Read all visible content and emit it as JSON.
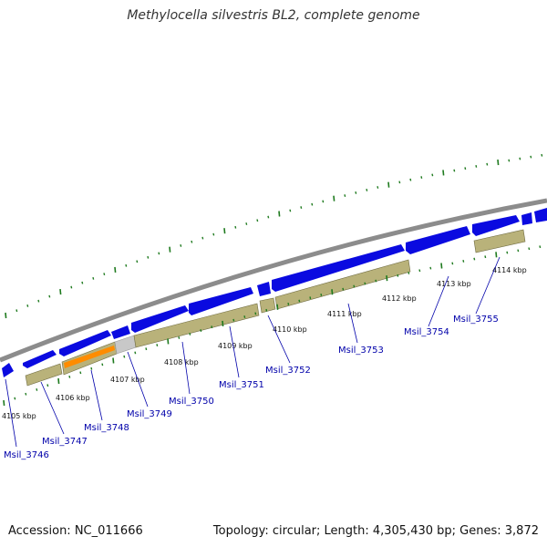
{
  "header": {
    "title": "Methylocella silvestris BL2, complete genome"
  },
  "footer": {
    "accession": "Accession: NC_011666",
    "summary": "Topology: circular; Length: 4,305,430 bp; Genes: 3,872"
  },
  "colors": {
    "backbone": "#8c8c8c",
    "gene_blue": "#0a0ae0",
    "cds_khaki": "#b9b27a",
    "rna_orange": "#ff8c00",
    "grey_feature": "#c8c8c8",
    "tick_green": "#1e7a1e",
    "label_blue": "#0000aa"
  },
  "map": {
    "kbp_labels": [
      "4105 kbp",
      "4106 kbp",
      "4107 kbp",
      "4108 kbp",
      "4109 kbp",
      "4110 kbp",
      "4111 kbp",
      "4112 kbp",
      "4113 kbp",
      "4114 kbp"
    ],
    "genes": [
      "Msil_3746",
      "Msil_3747",
      "Msil_3748",
      "Msil_3749",
      "Msil_3750",
      "Msil_3751",
      "Msil_3752",
      "Msil_3753",
      "Msil_3754",
      "Msil_3755"
    ]
  }
}
